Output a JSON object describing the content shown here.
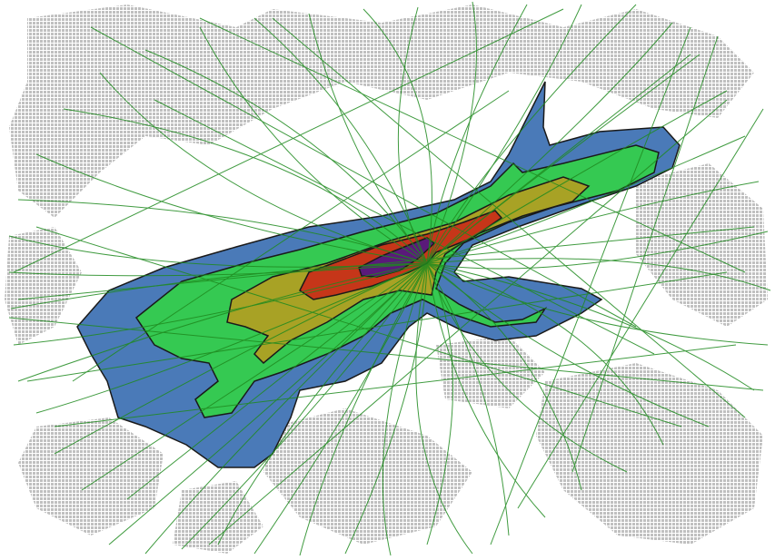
{
  "colors": {
    "background": "#ffffff",
    "urban_texture": "#b9b9b9",
    "flight_track": "#1f8a1f",
    "contour_outline": "#1a1a1a",
    "contour_levels": [
      "#4a7ab8",
      "#35c952",
      "#a8a225",
      "#c63619",
      "#5a1a7a"
    ]
  },
  "contour_levels": [
    {
      "level": 1,
      "fill": "#4a7ab8"
    },
    {
      "level": 2,
      "fill": "#35c952"
    },
    {
      "level": 3,
      "fill": "#a8a225"
    },
    {
      "level": 4,
      "fill": "#c63619"
    },
    {
      "level": 5,
      "fill": "#5a1a7a"
    }
  ],
  "legend": []
}
